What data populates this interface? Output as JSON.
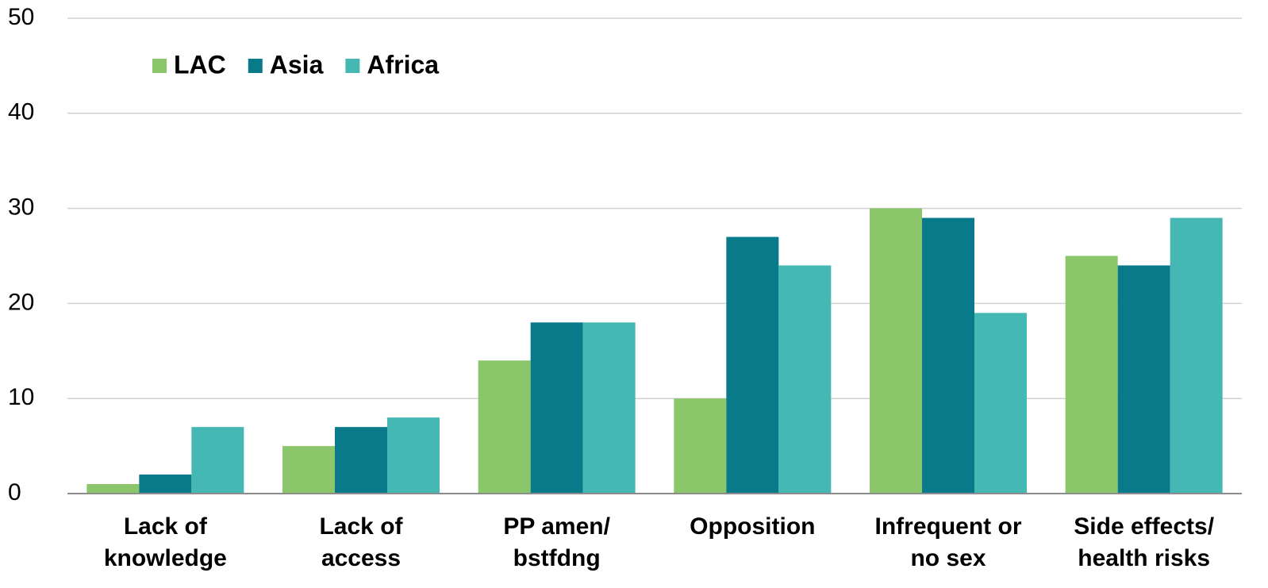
{
  "chart_data": {
    "type": "bar",
    "categories": [
      [
        "Lack of",
        "knowledge"
      ],
      [
        "Lack of",
        "access"
      ],
      [
        "PP amen/",
        "bstfdng"
      ],
      [
        "Opposition"
      ],
      [
        "Infrequent or",
        "no sex"
      ],
      [
        "Side effects/",
        "health risks"
      ]
    ],
    "series": [
      {
        "name": "LAC",
        "color": "#8cc66a",
        "values": [
          1,
          5,
          14,
          10,
          30,
          25
        ]
      },
      {
        "name": "Asia",
        "color": "#087a8a",
        "values": [
          2,
          7,
          18,
          27,
          29,
          24
        ]
      },
      {
        "name": "Africa",
        "color": "#45b8b4",
        "values": [
          7,
          8,
          18,
          24,
          19,
          29
        ]
      }
    ],
    "ylim": [
      0,
      50
    ],
    "yticks": [
      0,
      10,
      20,
      30,
      40,
      50
    ],
    "grid": true,
    "legend": "top-left"
  }
}
